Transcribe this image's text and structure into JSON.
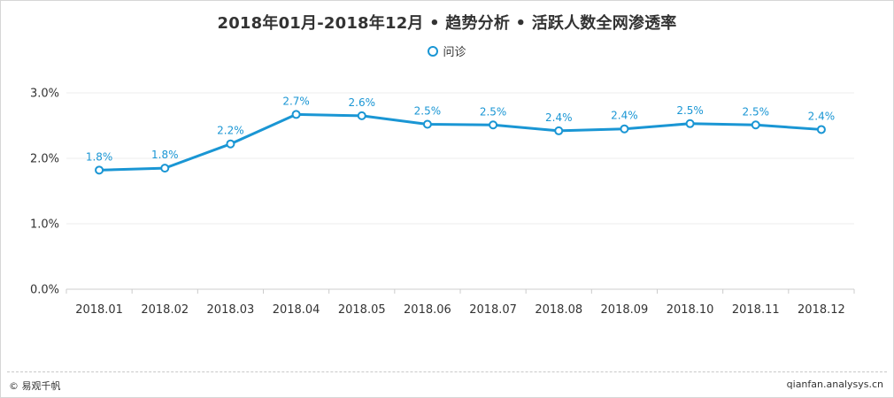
{
  "page": {
    "title": "2018年01月-2018年12月 • 趋势分析 • 活跃人数全网渗透率",
    "footer_left": "© 易观千帆",
    "footer_right": "qianfan.analysys.cn"
  },
  "colors": {
    "series": "#1a96d4",
    "label": "#1a96d4",
    "grid": "#eeeeee",
    "axis": "#cccccc"
  },
  "chart_data": {
    "type": "line",
    "title": "2018年01月-2018年12月 • 趋势分析 • 活跃人数全网渗透率",
    "xlabel": "",
    "ylabel": "",
    "categories": [
      "2018.01",
      "2018.02",
      "2018.03",
      "2018.04",
      "2018.05",
      "2018.06",
      "2018.07",
      "2018.08",
      "2018.09",
      "2018.10",
      "2018.11",
      "2018.12"
    ],
    "series": [
      {
        "name": "问诊",
        "values": [
          1.82,
          1.85,
          2.22,
          2.67,
          2.65,
          2.52,
          2.51,
          2.42,
          2.45,
          2.53,
          2.51,
          2.44
        ],
        "data_labels": [
          "1.8%",
          "1.8%",
          "2.2%",
          "2.7%",
          "2.6%",
          "2.5%",
          "2.5%",
          "2.4%",
          "2.4%",
          "2.5%",
          "2.5%",
          "2.4%"
        ]
      }
    ],
    "ylim": [
      0,
      3
    ],
    "yticks": [
      0,
      1,
      2,
      3
    ],
    "ytick_labels": [
      "0.0%",
      "1.0%",
      "2.0%",
      "3.0%"
    ],
    "grid": true,
    "legend_position": "top-center"
  }
}
